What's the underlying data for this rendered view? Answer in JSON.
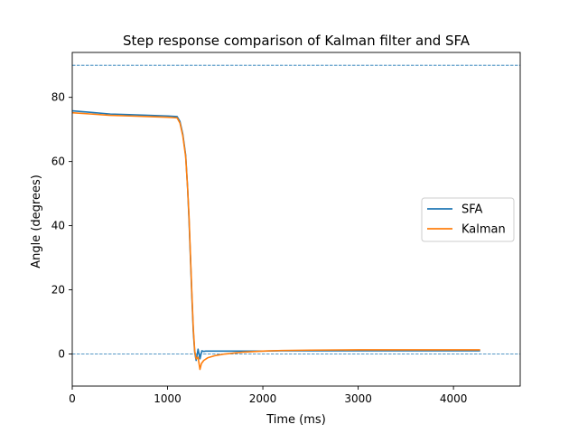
{
  "chart_data": {
    "type": "line",
    "title": "Step response comparison of Kalman filter and SFA",
    "xlabel": "Time (ms)",
    "ylabel": "Angle (degrees)",
    "xlim": [
      0,
      4700
    ],
    "ylim": [
      -10,
      94
    ],
    "xticks": [
      0,
      1000,
      2000,
      3000,
      4000
    ],
    "yticks": [
      0,
      20,
      40,
      60,
      80
    ],
    "grid": false,
    "legend_position": "center-right",
    "reference_lines": [
      {
        "y": 90,
        "style": "dashed",
        "color": "#1f77b4"
      },
      {
        "y": 0,
        "style": "dashed",
        "color": "#1f77b4"
      }
    ],
    "series": [
      {
        "name": "SFA",
        "color": "#1f77b4",
        "x": [
          0,
          200,
          400,
          600,
          800,
          1000,
          1100,
          1130,
          1160,
          1190,
          1210,
          1225,
          1240,
          1255,
          1270,
          1285,
          1300,
          1320,
          1340,
          1360,
          1380,
          1400,
          1500,
          1600,
          1800,
          2000,
          2200,
          2500,
          3000,
          3500,
          4000,
          4280
        ],
        "y": [
          75.8,
          75.3,
          74.8,
          74.6,
          74.4,
          74.2,
          74.0,
          72.5,
          68.5,
          62.0,
          52.0,
          42.0,
          30.0,
          18.0,
          7.0,
          0.5,
          -2.0,
          1.5,
          -1.5,
          1.0,
          0.8,
          0.9,
          0.9,
          0.9,
          0.9,
          0.9,
          1.0,
          1.0,
          1.0,
          1.0,
          1.0,
          1.0
        ]
      },
      {
        "name": "Kalman",
        "color": "#ff7f0e",
        "x": [
          0,
          200,
          400,
          600,
          800,
          1000,
          1100,
          1130,
          1160,
          1190,
          1210,
          1225,
          1240,
          1255,
          1270,
          1285,
          1300,
          1320,
          1340,
          1355,
          1380,
          1420,
          1500,
          1600,
          1700,
          1800,
          2000,
          2200,
          2500,
          3000,
          3500,
          4000,
          4280
        ],
        "y": [
          75.2,
          74.8,
          74.4,
          74.2,
          74.0,
          73.8,
          73.6,
          72.0,
          68.0,
          61.5,
          52.0,
          43.0,
          31.0,
          19.0,
          8.0,
          1.0,
          -1.5,
          -1.0,
          -4.8,
          -3.0,
          -2.0,
          -1.2,
          -0.5,
          0.0,
          0.3,
          0.6,
          0.9,
          1.1,
          1.2,
          1.3,
          1.3,
          1.3,
          1.3
        ]
      }
    ]
  }
}
